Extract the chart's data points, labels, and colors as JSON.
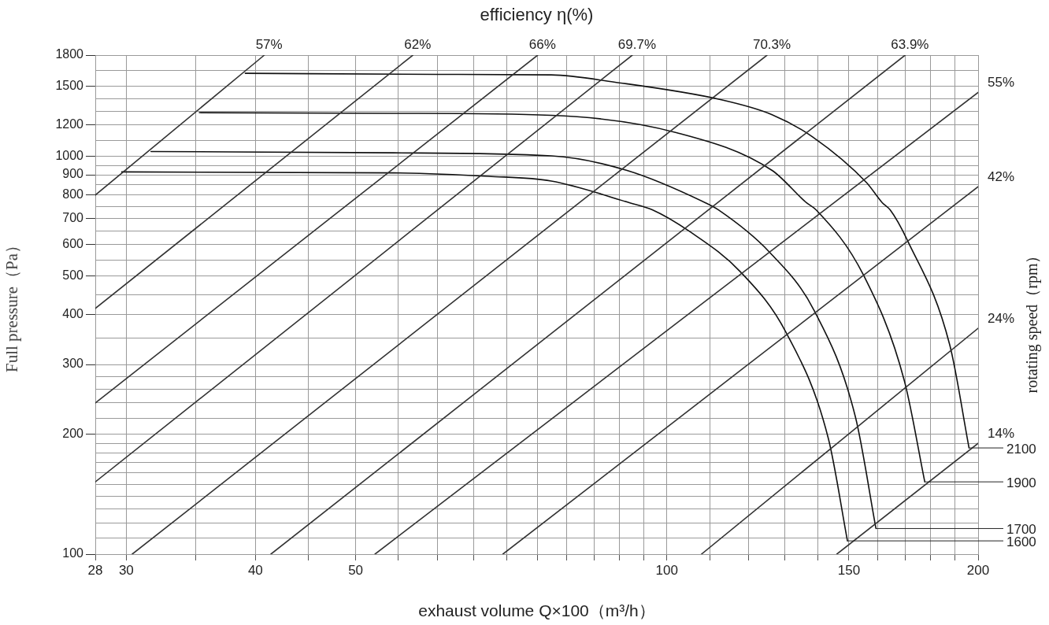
{
  "chart_data": {
    "type": "line",
    "title": "efficiency η(%)",
    "xlabel": "exhaust volume Q×100（m³/h）",
    "ylabel": "Full pressure（Pa）",
    "y2label": "rotating speed（rpm）",
    "log": "xy",
    "grid": true,
    "legend": false,
    "marker": "none",
    "line_style": "solid",
    "xlim": [
      28,
      200
    ],
    "ylim": [
      100,
      1800
    ],
    "xticks": [
      28,
      30,
      {
        "value": 35,
        "label": null
      },
      40,
      {
        "value": 45,
        "label": null
      },
      50,
      {
        "value": 55,
        "label": null
      },
      {
        "value": 60,
        "label": null
      },
      {
        "value": 65,
        "label": null
      },
      {
        "value": 70,
        "label": null
      },
      {
        "value": 75,
        "label": null
      },
      {
        "value": 80,
        "label": null
      },
      {
        "value": 85,
        "label": null
      },
      {
        "value": 90,
        "label": null
      },
      {
        "value": 95,
        "label": null
      },
      100,
      {
        "value": 110,
        "label": null
      },
      {
        "value": 120,
        "label": null
      },
      {
        "value": 130,
        "label": null
      },
      {
        "value": 140,
        "label": null
      },
      150,
      {
        "value": 160,
        "label": null
      },
      {
        "value": 170,
        "label": null
      },
      {
        "value": 180,
        "label": null
      },
      {
        "value": 190,
        "label": null
      },
      200
    ],
    "yticks": [
      100,
      {
        "value": 110,
        "label": null
      },
      {
        "value": 120,
        "label": null
      },
      {
        "value": 130,
        "label": null
      },
      {
        "value": 140,
        "label": null
      },
      {
        "value": 150,
        "label": null
      },
      {
        "value": 160,
        "label": null
      },
      {
        "value": 170,
        "label": null
      },
      {
        "value": 180,
        "label": null
      },
      {
        "value": 190,
        "label": null
      },
      200,
      {
        "value": 220,
        "label": null
      },
      {
        "value": 240,
        "label": null
      },
      {
        "value": 260,
        "label": null
      },
      {
        "value": 280,
        "label": null
      },
      300,
      {
        "value": 350,
        "label": null
      },
      400,
      {
        "value": 450,
        "label": null
      },
      500,
      {
        "value": 550,
        "label": null
      },
      600,
      {
        "value": 650,
        "label": null
      },
      700,
      {
        "value": 750,
        "label": null
      },
      800,
      {
        "value": 850,
        "label": null
      },
      900,
      {
        "value": 950,
        "label": null
      },
      1000,
      {
        "value": 1100,
        "label": null
      },
      1200,
      {
        "value": 1300,
        "label": null
      },
      {
        "value": 1400,
        "label": null
      },
      1500,
      {
        "value": 1650,
        "label": null
      },
      1800
    ],
    "series": [
      {
        "name": "57%",
        "color": "#333333",
        "x": [
          28,
          40.8
        ],
        "values": [
          800,
          1800
        ]
      },
      {
        "name": "62%",
        "color": "#333333",
        "x": [
          28,
          56.8
        ],
        "values": [
          415,
          1800
        ]
      },
      {
        "name": "66%",
        "color": "#333333",
        "x": [
          28,
          75
        ],
        "values": [
          240,
          1800
        ]
      },
      {
        "name": "69.7%",
        "color": "#333333",
        "x": [
          28,
          92.6
        ],
        "values": [
          152,
          1800
        ]
      },
      {
        "name": "70.3%",
        "color": "#333333",
        "x": [
          30.4,
          125
        ],
        "values": [
          100,
          1800
        ]
      },
      {
        "name": "63.9%",
        "color": "#333333",
        "x": [
          41.4,
          170
        ],
        "values": [
          100,
          1800
        ]
      },
      {
        "name": "55%",
        "color": "#333333",
        "x": [
          52.2,
          200
        ],
        "values": [
          100,
          1450
        ]
      },
      {
        "name": "42%",
        "color": "#333333",
        "x": [
          69.4,
          200
        ],
        "values": [
          100,
          840
        ]
      },
      {
        "name": "24%",
        "color": "#333333",
        "x": [
          108,
          200
        ],
        "values": [
          100,
          370
        ]
      },
      {
        "name": "14%",
        "color": "#333333",
        "x": [
          146,
          200
        ],
        "values": [
          100,
          190
        ]
      },
      {
        "name": "2100",
        "color": "#111111",
        "x": [
          39.1,
          60,
          77.3,
          88.9,
          112.9,
          126.4,
          138.4,
          156,
          161.6,
          164.4,
          170.9,
          187.8,
          196
        ],
        "values": [
          1620,
          1610,
          1605,
          1540,
          1390,
          1275,
          1120,
          860,
          765,
          735,
          615,
          335,
          185
        ]
      },
      {
        "name": "1900",
        "color": "#111111",
        "x": [
          35.3,
          54.4,
          77.3,
          102.3,
          126.4,
          136.5,
          139.4,
          154.9,
          169.7,
          177.6
        ],
        "values": [
          1290,
          1285,
          1270,
          1148,
          923,
          765,
          735,
          504,
          273,
          152
        ]
      },
      {
        "name": "1700",
        "color": "#111111",
        "x": [
          31.7,
          54.4,
          77.3,
          91.5,
          109,
          112.1,
          125.5,
          138.9,
          152.2,
          159.3
        ],
        "values": [
          1030,
          1022,
          1004,
          923,
          765,
          735,
          577,
          409,
          221,
          116
        ]
      },
      {
        "name": "1600",
        "color": "#111111",
        "x": [
          29.7,
          54.4,
          67.2,
          77.3,
          92.1,
          96.8,
          105.3,
          117.8,
          130.4,
          143.3,
          149.5
        ],
        "values": [
          915,
          910,
          892,
          868,
          765,
          735,
          647,
          513,
          361,
          195,
          108
        ]
      }
    ]
  }
}
